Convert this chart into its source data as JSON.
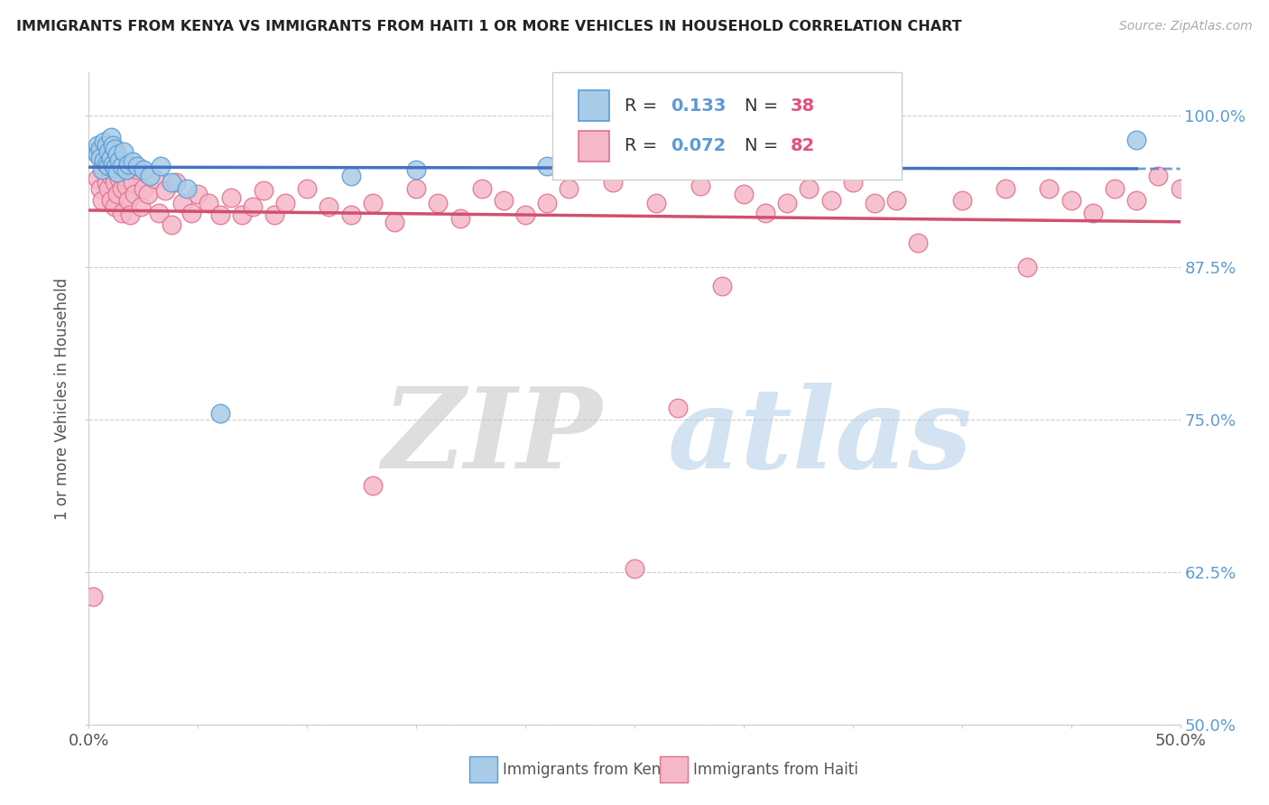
{
  "title": "IMMIGRANTS FROM KENYA VS IMMIGRANTS FROM HAITI 1 OR MORE VEHICLES IN HOUSEHOLD CORRELATION CHART",
  "source": "Source: ZipAtlas.com",
  "ylabel": "1 or more Vehicles in Household",
  "xlim": [
    0.0,
    0.5
  ],
  "ylim": [
    0.5,
    1.035
  ],
  "xticks": [
    0.0,
    0.05,
    0.1,
    0.15,
    0.2,
    0.25,
    0.3,
    0.35,
    0.4,
    0.45,
    0.5
  ],
  "ytick_labels": [
    "50.0%",
    "62.5%",
    "75.0%",
    "87.5%",
    "100.0%"
  ],
  "yticks": [
    0.5,
    0.625,
    0.75,
    0.875,
    1.0
  ],
  "kenya_R": 0.133,
  "kenya_N": 38,
  "haiti_R": 0.072,
  "haiti_N": 82,
  "kenya_color": "#a8cce8",
  "haiti_color": "#f5b8c8",
  "kenya_edge_color": "#5b9bd5",
  "haiti_edge_color": "#e07090",
  "kenya_line_color": "#4472c4",
  "haiti_line_color": "#d05070",
  "background_color": "#ffffff",
  "watermark_zip": "ZIP",
  "watermark_atlas": "atlas",
  "kenya_x": [
    0.003,
    0.004,
    0.004,
    0.005,
    0.005,
    0.006,
    0.007,
    0.007,
    0.008,
    0.008,
    0.009,
    0.009,
    0.01,
    0.01,
    0.011,
    0.011,
    0.012,
    0.012,
    0.013,
    0.013,
    0.014,
    0.015,
    0.016,
    0.017,
    0.018,
    0.02,
    0.022,
    0.025,
    0.028,
    0.033,
    0.038,
    0.045,
    0.06,
    0.12,
    0.15,
    0.21,
    0.29,
    0.48
  ],
  "kenya_y": [
    0.97,
    0.975,
    0.968,
    0.972,
    0.965,
    0.955,
    0.978,
    0.963,
    0.975,
    0.96,
    0.97,
    0.958,
    0.982,
    0.965,
    0.975,
    0.96,
    0.972,
    0.957,
    0.968,
    0.953,
    0.963,
    0.958,
    0.97,
    0.955,
    0.96,
    0.962,
    0.958,
    0.955,
    0.95,
    0.958,
    0.945,
    0.94,
    0.755,
    0.95,
    0.955,
    0.958,
    0.96,
    0.98
  ],
  "haiti_x": [
    0.002,
    0.004,
    0.005,
    0.006,
    0.007,
    0.008,
    0.009,
    0.01,
    0.01,
    0.011,
    0.012,
    0.012,
    0.013,
    0.013,
    0.014,
    0.015,
    0.015,
    0.016,
    0.017,
    0.018,
    0.019,
    0.02,
    0.021,
    0.022,
    0.024,
    0.025,
    0.027,
    0.03,
    0.032,
    0.035,
    0.038,
    0.04,
    0.043,
    0.047,
    0.05,
    0.055,
    0.06,
    0.065,
    0.07,
    0.075,
    0.08,
    0.085,
    0.09,
    0.1,
    0.11,
    0.12,
    0.13,
    0.14,
    0.15,
    0.16,
    0.17,
    0.18,
    0.19,
    0.2,
    0.21,
    0.22,
    0.24,
    0.26,
    0.28,
    0.3,
    0.31,
    0.32,
    0.33,
    0.34,
    0.35,
    0.36,
    0.38,
    0.4,
    0.42,
    0.44,
    0.45,
    0.46,
    0.47,
    0.48,
    0.49,
    0.5,
    0.37,
    0.43,
    0.13,
    0.27,
    0.25,
    0.29
  ],
  "haiti_y": [
    0.605,
    0.948,
    0.94,
    0.93,
    0.955,
    0.945,
    0.94,
    0.95,
    0.93,
    0.96,
    0.945,
    0.925,
    0.952,
    0.935,
    0.948,
    0.94,
    0.92,
    0.95,
    0.942,
    0.93,
    0.918,
    0.945,
    0.935,
    0.955,
    0.925,
    0.94,
    0.935,
    0.948,
    0.92,
    0.938,
    0.91,
    0.945,
    0.928,
    0.92,
    0.935,
    0.928,
    0.918,
    0.932,
    0.918,
    0.925,
    0.938,
    0.918,
    0.928,
    0.94,
    0.925,
    0.918,
    0.928,
    0.912,
    0.94,
    0.928,
    0.915,
    0.94,
    0.93,
    0.918,
    0.928,
    0.94,
    0.945,
    0.928,
    0.942,
    0.935,
    0.92,
    0.928,
    0.94,
    0.93,
    0.945,
    0.928,
    0.895,
    0.93,
    0.94,
    0.94,
    0.93,
    0.92,
    0.94,
    0.93,
    0.95,
    0.94,
    0.93,
    0.875,
    0.696,
    0.76,
    0.628,
    0.86
  ]
}
